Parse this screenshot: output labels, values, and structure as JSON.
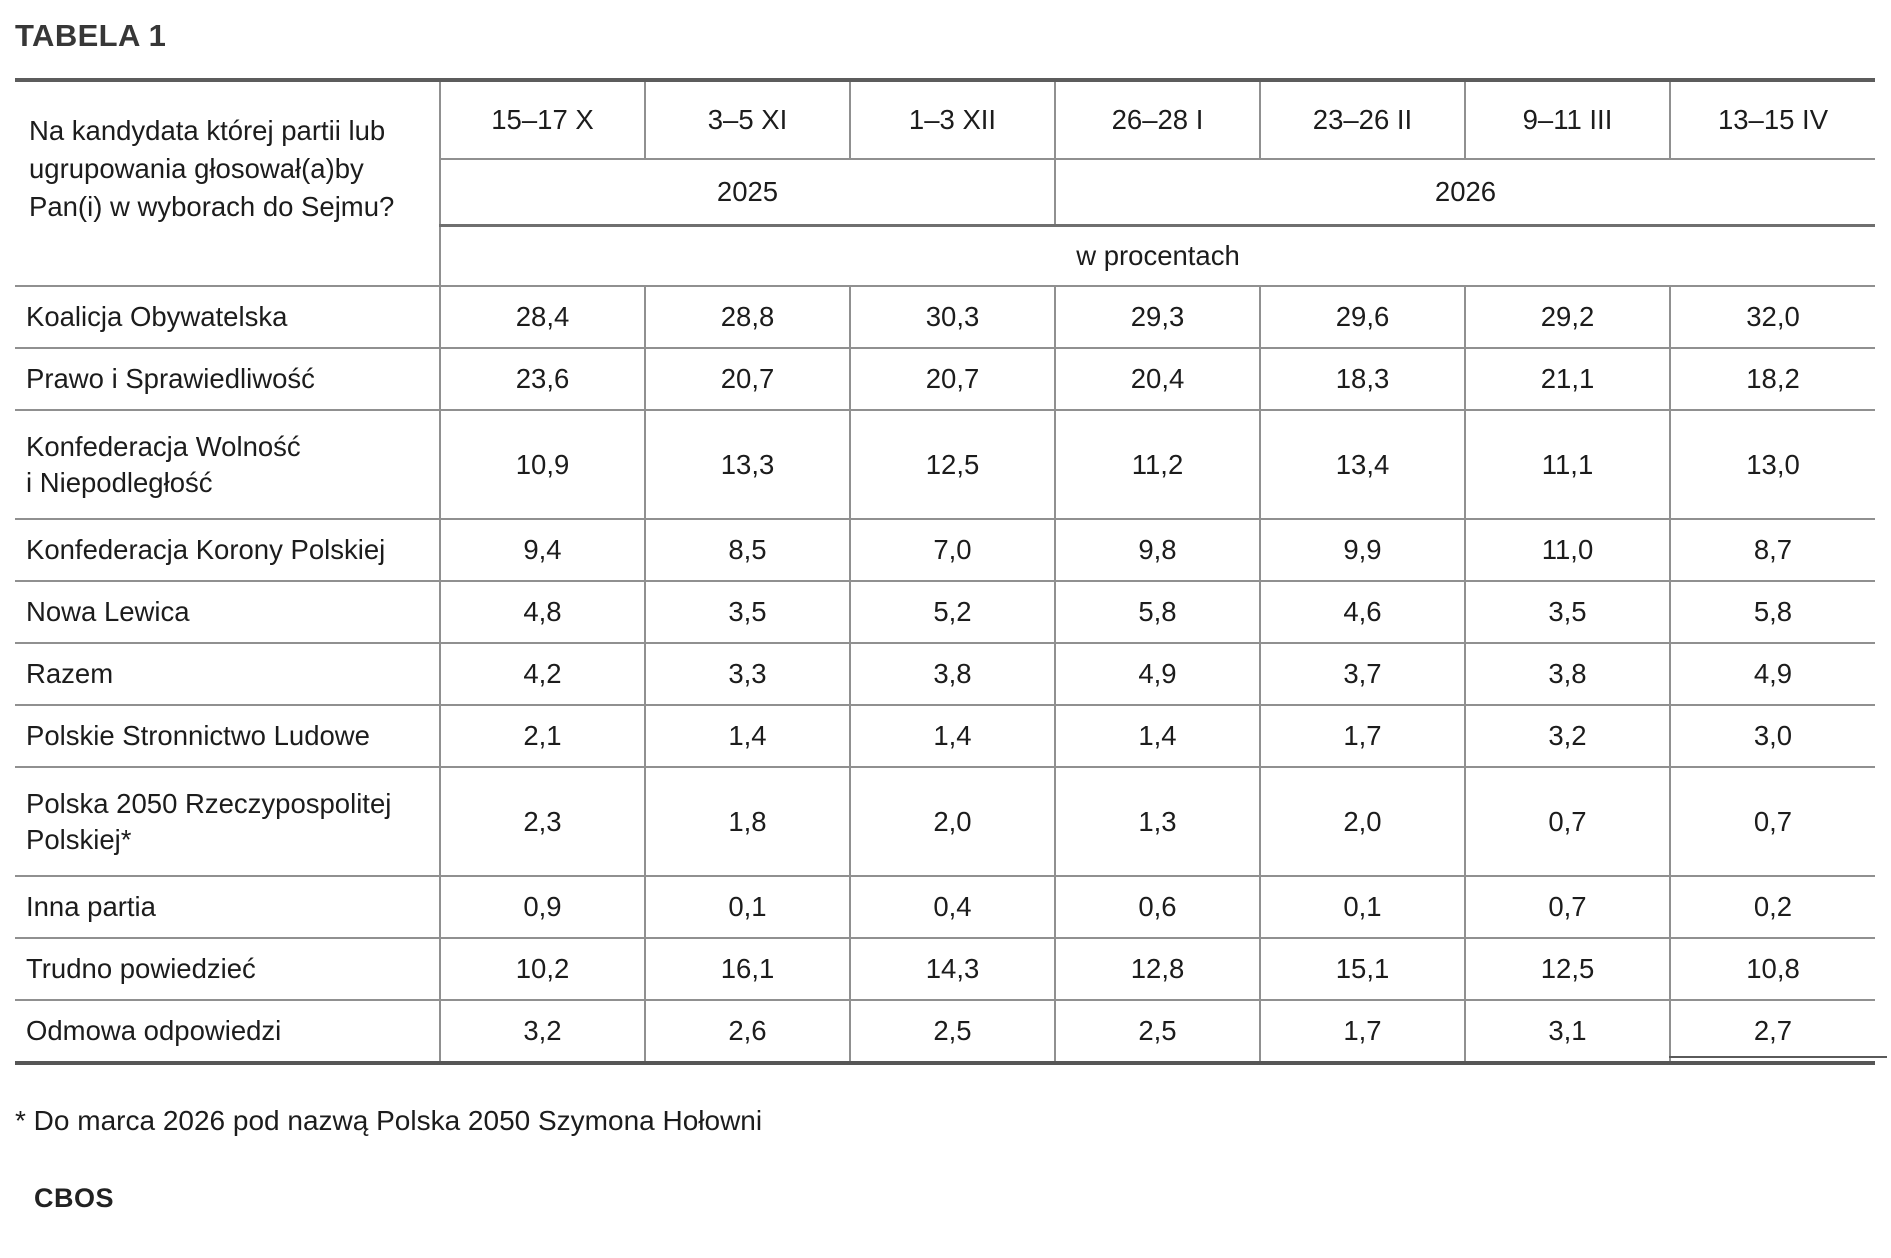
{
  "title": "TABELA 1",
  "table": {
    "question": "Na kandydata której partii lub\nugrupowania głosował(a)by\nPan(i) w wyborach do Sejmu?",
    "date_columns": [
      "15–17 X",
      "3–5 XI",
      "1–3 XII",
      "26–28 I",
      "23–26 II",
      "9–11 III",
      "13–15 IV"
    ],
    "year_2025": "2025",
    "year_2026": "2026",
    "unit_row": "w procentach",
    "rows": [
      {
        "label": "Koalicja Obywatelska",
        "values": [
          "28,4",
          "28,8",
          "30,3",
          "29,3",
          "29,6",
          "29,2",
          "32,0"
        ]
      },
      {
        "label": "Prawo i Sprawiedliwość",
        "values": [
          "23,6",
          "20,7",
          "20,7",
          "20,4",
          "18,3",
          "21,1",
          "18,2"
        ]
      },
      {
        "label": "Konfederacja Wolność\ni Niepodległość",
        "values": [
          "10,9",
          "13,3",
          "12,5",
          "11,2",
          "13,4",
          "11,1",
          "13,0"
        ]
      },
      {
        "label": "Konfederacja Korony Polskiej",
        "values": [
          "9,4",
          "8,5",
          "7,0",
          "9,8",
          "9,9",
          "11,0",
          "8,7"
        ]
      },
      {
        "label": "Nowa Lewica",
        "values": [
          "4,8",
          "3,5",
          "5,2",
          "5,8",
          "4,6",
          "3,5",
          "5,8"
        ]
      },
      {
        "label": "Razem",
        "values": [
          "4,2",
          "3,3",
          "3,8",
          "4,9",
          "3,7",
          "3,8",
          "4,9"
        ]
      },
      {
        "label": "Polskie Stronnictwo Ludowe",
        "values": [
          "2,1",
          "1,4",
          "1,4",
          "1,4",
          "1,7",
          "3,2",
          "3,0"
        ]
      },
      {
        "label": "Polska 2050 Rzeczypospolitej\nPolskiej*",
        "values": [
          "2,3",
          "1,8",
          "2,0",
          "1,3",
          "2,0",
          "0,7",
          "0,7"
        ]
      },
      {
        "label": "Inna partia",
        "values": [
          "0,9",
          "0,1",
          "0,4",
          "0,6",
          "0,1",
          "0,7",
          "0,2"
        ]
      },
      {
        "label": "Trudno powiedzieć",
        "values": [
          "10,2",
          "16,1",
          "14,3",
          "12,8",
          "15,1",
          "12,5",
          "10,8"
        ]
      },
      {
        "label": "Odmowa odpowiedzi",
        "values": [
          "3,2",
          "2,6",
          "2,5",
          "2,5",
          "1,7",
          "3,1",
          "2,7"
        ]
      }
    ]
  },
  "footnote": "* Do marca 2026 pod nazwą Polska 2050 Szymona Hołowni",
  "source": "CBOS",
  "colors": {
    "border_thick": "#5c5c5c",
    "border_thin": "#909090",
    "text": "#1c1c1c"
  },
  "chart_data": {
    "type": "table",
    "title": "TABELA 1",
    "question": "Na kandydata której partii lub ugrupowania głosował(a)by Pan(i) w wyborach do Sejmu?",
    "unit": "w procentach",
    "columns": [
      "15–17 X 2025",
      "3–5 XI 2025",
      "1–3 XII 2025",
      "26–28 I 2026",
      "23–26 II 2026",
      "9–11 III 2026",
      "13–15 IV 2026"
    ],
    "series": [
      {
        "name": "Koalicja Obywatelska",
        "values": [
          28.4,
          28.8,
          30.3,
          29.3,
          29.6,
          29.2,
          32.0
        ]
      },
      {
        "name": "Prawo i Sprawiedliwość",
        "values": [
          23.6,
          20.7,
          20.7,
          20.4,
          18.3,
          21.1,
          18.2
        ]
      },
      {
        "name": "Konfederacja Wolność i Niepodległość",
        "values": [
          10.9,
          13.3,
          12.5,
          11.2,
          13.4,
          11.1,
          13.0
        ]
      },
      {
        "name": "Konfederacja Korony Polskiej",
        "values": [
          9.4,
          8.5,
          7.0,
          9.8,
          9.9,
          11.0,
          8.7
        ]
      },
      {
        "name": "Nowa Lewica",
        "values": [
          4.8,
          3.5,
          5.2,
          5.8,
          4.6,
          3.5,
          5.8
        ]
      },
      {
        "name": "Razem",
        "values": [
          4.2,
          3.3,
          3.8,
          4.9,
          3.7,
          3.8,
          4.9
        ]
      },
      {
        "name": "Polskie Stronnictwo Ludowe",
        "values": [
          2.1,
          1.4,
          1.4,
          1.4,
          1.7,
          3.2,
          3.0
        ]
      },
      {
        "name": "Polska 2050 Rzeczypospolitej Polskiej*",
        "values": [
          2.3,
          1.8,
          2.0,
          1.3,
          2.0,
          0.7,
          0.7
        ]
      },
      {
        "name": "Inna partia",
        "values": [
          0.9,
          0.1,
          0.4,
          0.6,
          0.1,
          0.7,
          0.2
        ]
      },
      {
        "name": "Trudno powiedzieć",
        "values": [
          10.2,
          16.1,
          14.3,
          12.8,
          15.1,
          12.5,
          10.8
        ]
      },
      {
        "name": "Odmowa odpowiedzi",
        "values": [
          3.2,
          2.6,
          2.5,
          2.5,
          1.7,
          3.1,
          2.7
        ]
      }
    ],
    "footnote": "* Do marca 2026 pod nazwą Polska 2050 Szymona Hołowni",
    "source": "CBOS"
  }
}
